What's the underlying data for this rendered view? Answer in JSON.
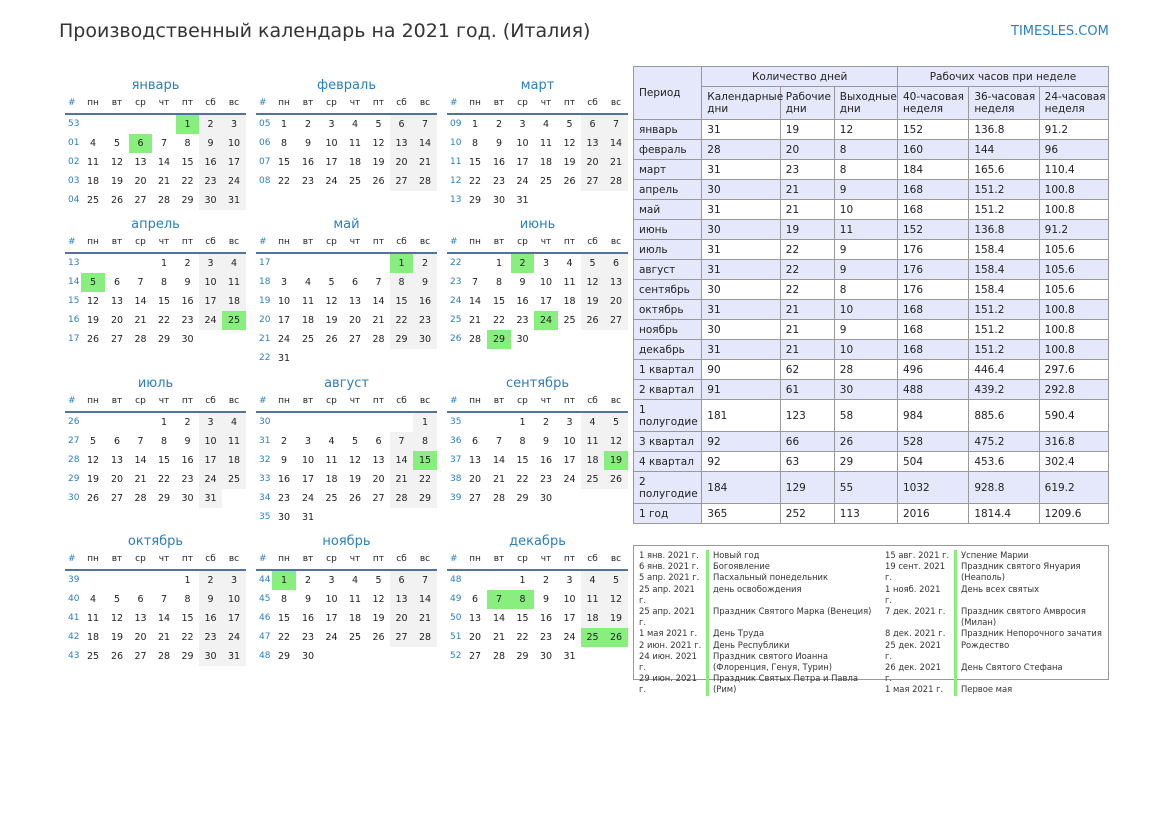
{
  "title": "Производственный календарь на 2021 год. (Италия)",
  "brand": "TIMESLES.COM",
  "colors": {
    "accent": "#2a7fc1",
    "holiday": "#88ef7e",
    "weekend": "#f2f2f2",
    "header_bg": "#e4e8fa"
  },
  "weekday_header": [
    "#",
    "пн",
    "вт",
    "ср",
    "чт",
    "пт",
    "сб",
    "вс"
  ],
  "months": [
    {
      "name": "январь",
      "weeks": [
        [
          "53",
          "",
          "",
          "",
          "",
          "1",
          "2",
          "3"
        ],
        [
          "01",
          "4",
          "5",
          "6",
          "7",
          "8",
          "9",
          "10"
        ],
        [
          "02",
          "11",
          "12",
          "13",
          "14",
          "15",
          "16",
          "17"
        ],
        [
          "03",
          "18",
          "19",
          "20",
          "21",
          "22",
          "23",
          "24"
        ],
        [
          "04",
          "25",
          "26",
          "27",
          "28",
          "29",
          "30",
          "31"
        ]
      ],
      "holidays": [
        "1",
        "6"
      ]
    },
    {
      "name": "февраль",
      "weeks": [
        [
          "05",
          "1",
          "2",
          "3",
          "4",
          "5",
          "6",
          "7"
        ],
        [
          "06",
          "8",
          "9",
          "10",
          "11",
          "12",
          "13",
          "14"
        ],
        [
          "07",
          "15",
          "16",
          "17",
          "18",
          "19",
          "20",
          "21"
        ],
        [
          "08",
          "22",
          "23",
          "24",
          "25",
          "26",
          "27",
          "28"
        ]
      ],
      "holidays": []
    },
    {
      "name": "март",
      "weeks": [
        [
          "09",
          "1",
          "2",
          "3",
          "4",
          "5",
          "6",
          "7"
        ],
        [
          "10",
          "8",
          "9",
          "10",
          "11",
          "12",
          "13",
          "14"
        ],
        [
          "11",
          "15",
          "16",
          "17",
          "18",
          "19",
          "20",
          "21"
        ],
        [
          "12",
          "22",
          "23",
          "24",
          "25",
          "26",
          "27",
          "28"
        ],
        [
          "13",
          "29",
          "30",
          "31",
          "",
          "",
          "",
          ""
        ]
      ],
      "holidays": []
    },
    {
      "name": "апрель",
      "weeks": [
        [
          "13",
          "",
          "",
          "",
          "1",
          "2",
          "3",
          "4"
        ],
        [
          "14",
          "5",
          "6",
          "7",
          "8",
          "9",
          "10",
          "11"
        ],
        [
          "15",
          "12",
          "13",
          "14",
          "15",
          "16",
          "17",
          "18"
        ],
        [
          "16",
          "19",
          "20",
          "21",
          "22",
          "23",
          "24",
          "25"
        ],
        [
          "17",
          "26",
          "27",
          "28",
          "29",
          "30",
          "",
          ""
        ]
      ],
      "holidays": [
        "5",
        "25"
      ]
    },
    {
      "name": "май",
      "weeks": [
        [
          "17",
          "",
          "",
          "",
          "",
          "",
          "1",
          "2"
        ],
        [
          "18",
          "3",
          "4",
          "5",
          "6",
          "7",
          "8",
          "9"
        ],
        [
          "19",
          "10",
          "11",
          "12",
          "13",
          "14",
          "15",
          "16"
        ],
        [
          "20",
          "17",
          "18",
          "19",
          "20",
          "21",
          "22",
          "23"
        ],
        [
          "21",
          "24",
          "25",
          "26",
          "27",
          "28",
          "29",
          "30"
        ],
        [
          "22",
          "31",
          "",
          "",
          "",
          "",
          "",
          ""
        ]
      ],
      "holidays": [
        "1"
      ]
    },
    {
      "name": "июнь",
      "weeks": [
        [
          "22",
          "",
          "1",
          "2",
          "3",
          "4",
          "5",
          "6"
        ],
        [
          "23",
          "7",
          "8",
          "9",
          "10",
          "11",
          "12",
          "13"
        ],
        [
          "24",
          "14",
          "15",
          "16",
          "17",
          "18",
          "19",
          "20"
        ],
        [
          "25",
          "21",
          "22",
          "23",
          "24",
          "25",
          "26",
          "27"
        ],
        [
          "26",
          "28",
          "29",
          "30",
          "",
          "",
          "",
          ""
        ]
      ],
      "holidays": [
        "2",
        "24",
        "29"
      ]
    },
    {
      "name": "июль",
      "weeks": [
        [
          "26",
          "",
          "",
          "",
          "1",
          "2",
          "3",
          "4"
        ],
        [
          "27",
          "5",
          "6",
          "7",
          "8",
          "9",
          "10",
          "11"
        ],
        [
          "28",
          "12",
          "13",
          "14",
          "15",
          "16",
          "17",
          "18"
        ],
        [
          "29",
          "19",
          "20",
          "21",
          "22",
          "23",
          "24",
          "25"
        ],
        [
          "30",
          "26",
          "27",
          "28",
          "29",
          "30",
          "31",
          ""
        ]
      ],
      "holidays": []
    },
    {
      "name": "август",
      "weeks": [
        [
          "30",
          "",
          "",
          "",
          "",
          "",
          "",
          "1"
        ],
        [
          "31",
          "2",
          "3",
          "4",
          "5",
          "6",
          "7",
          "8"
        ],
        [
          "32",
          "9",
          "10",
          "11",
          "12",
          "13",
          "14",
          "15"
        ],
        [
          "33",
          "16",
          "17",
          "18",
          "19",
          "20",
          "21",
          "22"
        ],
        [
          "34",
          "23",
          "24",
          "25",
          "26",
          "27",
          "28",
          "29"
        ],
        [
          "35",
          "30",
          "31",
          "",
          "",
          "",
          "",
          ""
        ]
      ],
      "holidays": [
        "15"
      ]
    },
    {
      "name": "сентябрь",
      "weeks": [
        [
          "35",
          "",
          "",
          "1",
          "2",
          "3",
          "4",
          "5"
        ],
        [
          "36",
          "6",
          "7",
          "8",
          "9",
          "10",
          "11",
          "12"
        ],
        [
          "37",
          "13",
          "14",
          "15",
          "16",
          "17",
          "18",
          "19"
        ],
        [
          "38",
          "20",
          "21",
          "22",
          "23",
          "24",
          "25",
          "26"
        ],
        [
          "39",
          "27",
          "28",
          "29",
          "30",
          "",
          "",
          ""
        ]
      ],
      "holidays": [
        "19"
      ]
    },
    {
      "name": "октябрь",
      "weeks": [
        [
          "39",
          "",
          "",
          "",
          "",
          "1",
          "2",
          "3"
        ],
        [
          "40",
          "4",
          "5",
          "6",
          "7",
          "8",
          "9",
          "10"
        ],
        [
          "41",
          "11",
          "12",
          "13",
          "14",
          "15",
          "16",
          "17"
        ],
        [
          "42",
          "18",
          "19",
          "20",
          "21",
          "22",
          "23",
          "24"
        ],
        [
          "43",
          "25",
          "26",
          "27",
          "28",
          "29",
          "30",
          "31"
        ]
      ],
      "holidays": []
    },
    {
      "name": "ноябрь",
      "weeks": [
        [
          "44",
          "1",
          "2",
          "3",
          "4",
          "5",
          "6",
          "7"
        ],
        [
          "45",
          "8",
          "9",
          "10",
          "11",
          "12",
          "13",
          "14"
        ],
        [
          "46",
          "15",
          "16",
          "17",
          "18",
          "19",
          "20",
          "21"
        ],
        [
          "47",
          "22",
          "23",
          "24",
          "25",
          "26",
          "27",
          "28"
        ],
        [
          "48",
          "29",
          "30",
          "",
          "",
          "",
          "",
          ""
        ]
      ],
      "holidays": [
        "1"
      ]
    },
    {
      "name": "декабрь",
      "weeks": [
        [
          "48",
          "",
          "",
          "1",
          "2",
          "3",
          "4",
          "5"
        ],
        [
          "49",
          "6",
          "7",
          "8",
          "9",
          "10",
          "11",
          "12"
        ],
        [
          "50",
          "13",
          "14",
          "15",
          "16",
          "17",
          "18",
          "19"
        ],
        [
          "51",
          "20",
          "21",
          "22",
          "23",
          "24",
          "25",
          "26"
        ],
        [
          "52",
          "27",
          "28",
          "29",
          "30",
          "31",
          "",
          ""
        ]
      ],
      "holidays": [
        "7",
        "8",
        "25",
        "26"
      ]
    }
  ],
  "stats": {
    "period_header": "Период",
    "days_group": "Количество дней",
    "hours_group": "Рабочих часов при неделе",
    "columns": [
      "Календарные дни",
      "Рабочие дни",
      "Выходные дни",
      "40-часовая неделя",
      "36-часовая неделя",
      "24-часовая неделя"
    ],
    "rows": [
      {
        "label": "январь",
        "values": [
          "31",
          "19",
          "12",
          "152",
          "136.8",
          "91.2"
        ]
      },
      {
        "label": "февраль",
        "values": [
          "28",
          "20",
          "8",
          "160",
          "144",
          "96"
        ]
      },
      {
        "label": "март",
        "values": [
          "31",
          "23",
          "8",
          "184",
          "165.6",
          "110.4"
        ]
      },
      {
        "label": "апрель",
        "values": [
          "30",
          "21",
          "9",
          "168",
          "151.2",
          "100.8"
        ]
      },
      {
        "label": "май",
        "values": [
          "31",
          "21",
          "10",
          "168",
          "151.2",
          "100.8"
        ]
      },
      {
        "label": "июнь",
        "values": [
          "30",
          "19",
          "11",
          "152",
          "136.8",
          "91.2"
        ]
      },
      {
        "label": "июль",
        "values": [
          "31",
          "22",
          "9",
          "176",
          "158.4",
          "105.6"
        ]
      },
      {
        "label": "август",
        "values": [
          "31",
          "22",
          "9",
          "176",
          "158.4",
          "105.6"
        ]
      },
      {
        "label": "сентябрь",
        "values": [
          "30",
          "22",
          "8",
          "176",
          "158.4",
          "105.6"
        ]
      },
      {
        "label": "октябрь",
        "values": [
          "31",
          "21",
          "10",
          "168",
          "151.2",
          "100.8"
        ]
      },
      {
        "label": "ноябрь",
        "values": [
          "30",
          "21",
          "9",
          "168",
          "151.2",
          "100.8"
        ]
      },
      {
        "label": "декабрь",
        "values": [
          "31",
          "21",
          "10",
          "168",
          "151.2",
          "100.8"
        ]
      },
      {
        "label": "1 квартал",
        "values": [
          "90",
          "62",
          "28",
          "496",
          "446.4",
          "297.6"
        ]
      },
      {
        "label": "2 квартал",
        "values": [
          "91",
          "61",
          "30",
          "488",
          "439.2",
          "292.8"
        ]
      },
      {
        "label": "1 полугодие",
        "values": [
          "181",
          "123",
          "58",
          "984",
          "885.6",
          "590.4"
        ]
      },
      {
        "label": "3 квартал",
        "values": [
          "92",
          "66",
          "26",
          "528",
          "475.2",
          "316.8"
        ]
      },
      {
        "label": "4 квартал",
        "values": [
          "92",
          "63",
          "29",
          "504",
          "453.6",
          "302.4"
        ]
      },
      {
        "label": "2 полугодие",
        "values": [
          "184",
          "129",
          "55",
          "1032",
          "928.8",
          "619.2"
        ]
      },
      {
        "label": "1 год",
        "values": [
          "365",
          "252",
          "113",
          "2016",
          "1814.4",
          "1209.6"
        ]
      }
    ]
  },
  "holidays_list": [
    [
      {
        "date": "1 янв. 2021 г.",
        "name": "Новый год"
      },
      {
        "date": "6 янв. 2021 г.",
        "name": "Богоявление"
      },
      {
        "date": "5 апр. 2021 г.",
        "name": "Пасхальный понедельник"
      },
      {
        "date": "25 апр. 2021 г.",
        "name": "день освобождения"
      },
      {
        "date": "25 апр. 2021 г.",
        "name": "Праздник Святого Марка (Венеция)"
      },
      {
        "date": "1 мая 2021 г.",
        "name": "День Труда"
      },
      {
        "date": "2 июн. 2021 г.",
        "name": "День Республики"
      },
      {
        "date": "24 июн. 2021 г.",
        "name": "Праздник святого Иоанна (Флоренция, Генуя, Турин)"
      },
      {
        "date": "29 июн. 2021 г.",
        "name": "Праздник Святых Петра и Павла (Рим)"
      }
    ],
    [
      {
        "date": "15 авг. 2021 г.",
        "name": "Успение Марии"
      },
      {
        "date": "19 сент. 2021 г.",
        "name": "Праздник святого Януария (Неаполь)"
      },
      {
        "date": "1 нояб. 2021 г.",
        "name": "День всех святых"
      },
      {
        "date": "7 дек. 2021 г.",
        "name": "Праздник святого Амвросия (Милан)"
      },
      {
        "date": "8 дек. 2021 г.",
        "name": "Праздник Непорочного зачатия"
      },
      {
        "date": "25 дек. 2021 г.",
        "name": "Рождество"
      },
      {
        "date": "26 дек. 2021 г.",
        "name": "День Святого Стефана"
      },
      {
        "date": "1 мая 2021 г.",
        "name": "Первое мая"
      }
    ]
  ]
}
